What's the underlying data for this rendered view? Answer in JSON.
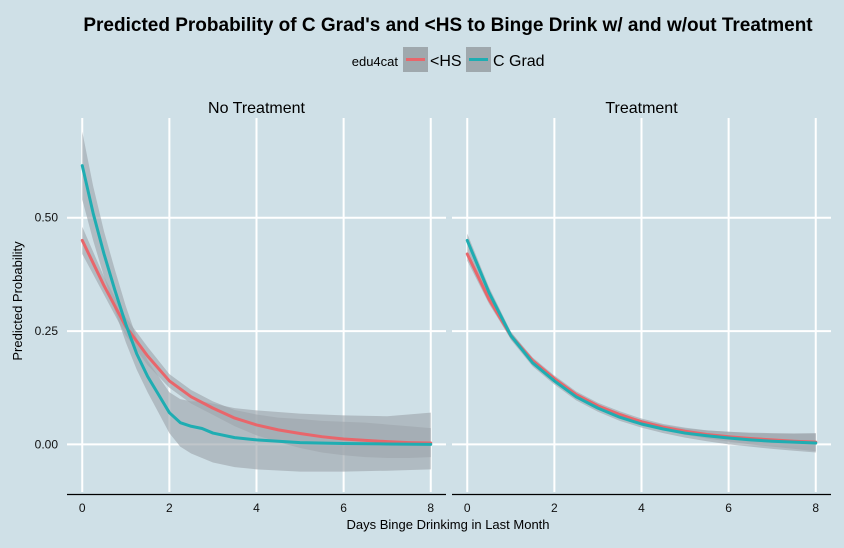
{
  "chart_data": {
    "type": "line",
    "title": "Predicted Probability of C Grad's and <HS to Binge Drink w/ and w/out Treatment",
    "xlabel": "Days Binge Drinkimg in Last Month",
    "ylabel": "Predicted Probability",
    "xlim": [
      -0.35,
      8.35
    ],
    "ylim": [
      -0.105,
      0.72
    ],
    "x_ticks": [
      0,
      2,
      4,
      6,
      8
    ],
    "x_tick_labels": [
      "0",
      "2",
      "4",
      "6",
      "8"
    ],
    "y_ticks": [
      0.0,
      0.25,
      0.5
    ],
    "y_tick_labels": [
      "0.00",
      "0.25",
      "0.50"
    ],
    "grid": true,
    "legend": {
      "title": "edu4cat",
      "position": "top",
      "entries": [
        {
          "label": "<HS",
          "color": "#e8666b"
        },
        {
          "label": "C Grad",
          "color": "#1fadb2"
        }
      ]
    },
    "panels": [
      {
        "name": "No Treatment",
        "series": [
          {
            "name": "<HS",
            "color": "#e8666b",
            "x": [
              0,
              0.5,
              1,
              1.5,
              2,
              2.5,
              3,
              3.5,
              4,
              4.5,
              5,
              5.5,
              6,
              6.5,
              7,
              7.5,
              8
            ],
            "y": [
              0.45,
              0.35,
              0.26,
              0.195,
              0.14,
              0.105,
              0.08,
              0.058,
              0.043,
              0.032,
              0.024,
              0.017,
              0.012,
              0.009,
              0.006,
              0.004,
              0.003
            ],
            "ci_low": [
              0.42,
              0.33,
              0.24,
              0.175,
              0.125,
              0.09,
              0.065,
              0.04,
              0.02,
              0.005,
              -0.008,
              -0.018,
              -0.024,
              -0.028,
              -0.03,
              -0.03,
              -0.028
            ],
            "ci_high": [
              0.48,
              0.37,
              0.28,
              0.215,
              0.155,
              0.12,
              0.095,
              0.076,
              0.066,
              0.059,
              0.056,
              0.052,
              0.05,
              0.048,
              0.044,
              0.04,
              0.036
            ]
          },
          {
            "name": "C Grad",
            "color": "#1fadb2",
            "x": [
              0,
              0.25,
              0.5,
              0.75,
              1,
              1.25,
              1.5,
              1.75,
              2,
              2.25,
              2.5,
              2.75,
              3,
              3.5,
              4,
              5,
              6,
              7,
              8
            ],
            "y": [
              0.615,
              0.51,
              0.42,
              0.34,
              0.265,
              0.2,
              0.15,
              0.11,
              0.07,
              0.048,
              0.04,
              0.035,
              0.025,
              0.015,
              0.01,
              0.004,
              0.002,
              0.001,
              0.0
            ],
            "ci_low": [
              0.54,
              0.45,
              0.37,
              0.295,
              0.225,
              0.165,
              0.115,
              0.07,
              0.025,
              -0.005,
              -0.02,
              -0.03,
              -0.04,
              -0.05,
              -0.055,
              -0.06,
              -0.06,
              -0.058,
              -0.055
            ],
            "ci_high": [
              0.69,
              0.57,
              0.47,
              0.385,
              0.305,
              0.235,
              0.185,
              0.15,
              0.115,
              0.1,
              0.095,
              0.095,
              0.09,
              0.08,
              0.075,
              0.068,
              0.064,
              0.062,
              0.07
            ]
          }
        ]
      },
      {
        "name": "Treatment",
        "series": [
          {
            "name": "<HS",
            "color": "#e8666b",
            "x": [
              0,
              0.5,
              1,
              1.5,
              2,
              2.5,
              3,
              3.5,
              4,
              4.5,
              5,
              5.5,
              6,
              6.5,
              7,
              7.5,
              8
            ],
            "y": [
              0.42,
              0.32,
              0.24,
              0.185,
              0.145,
              0.11,
              0.085,
              0.066,
              0.05,
              0.038,
              0.029,
              0.022,
              0.017,
              0.013,
              0.01,
              0.007,
              0.005
            ],
            "ci_low": [
              0.405,
              0.31,
              0.232,
              0.178,
              0.138,
              0.103,
              0.078,
              0.059,
              0.043,
              0.031,
              0.021,
              0.013,
              0.006,
              0.0,
              -0.005,
              -0.01,
              -0.015
            ],
            "ci_high": [
              0.435,
              0.33,
              0.248,
              0.192,
              0.152,
              0.117,
              0.092,
              0.073,
              0.057,
              0.045,
              0.037,
              0.031,
              0.028,
              0.026,
              0.025,
              0.024,
              0.025
            ]
          },
          {
            "name": "C Grad",
            "color": "#1fadb2",
            "x": [
              0,
              0.5,
              1,
              1.5,
              2,
              2.5,
              3,
              3.5,
              4,
              4.5,
              5,
              5.5,
              6,
              6.5,
              7,
              7.5,
              8
            ],
            "y": [
              0.45,
              0.335,
              0.24,
              0.18,
              0.14,
              0.105,
              0.08,
              0.06,
              0.045,
              0.034,
              0.025,
              0.019,
              0.014,
              0.01,
              0.007,
              0.005,
              0.003
            ],
            "ci_low": [
              0.435,
              0.323,
              0.231,
              0.172,
              0.132,
              0.097,
              0.072,
              0.052,
              0.037,
              0.025,
              0.015,
              0.007,
              0.0,
              -0.005,
              -0.01,
              -0.014,
              -0.018
            ],
            "ci_high": [
              0.465,
              0.347,
              0.249,
              0.188,
              0.148,
              0.113,
              0.088,
              0.068,
              0.053,
              0.043,
              0.035,
              0.031,
              0.028,
              0.025,
              0.024,
              0.024,
              0.024
            ]
          }
        ]
      }
    ],
    "ribbon_color": "#9fa8ad"
  }
}
